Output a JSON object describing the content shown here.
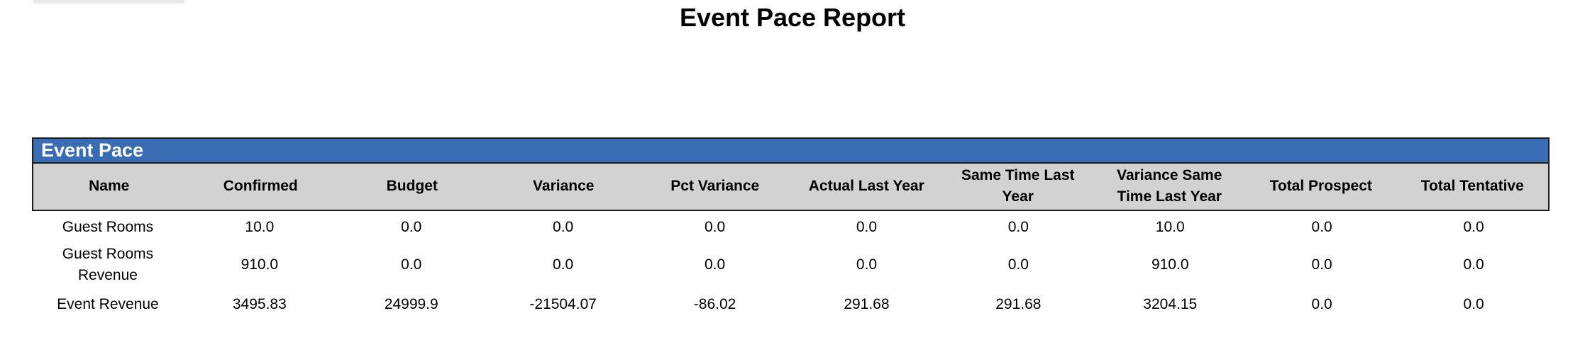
{
  "report": {
    "title": "Event Pace Report"
  },
  "section": {
    "title": "Event Pace"
  },
  "table": {
    "columns": [
      "Name",
      "Confirmed",
      "Budget",
      "Variance",
      "Pct Variance",
      "Actual Last Year",
      "Same Time Last Year",
      "Variance Same Time Last Year",
      "Total Prospect",
      "Total Tentative"
    ],
    "rows": [
      {
        "cells": [
          "Guest Rooms",
          "10.0",
          "0.0",
          "0.0",
          "0.0",
          "0.0",
          "0.0",
          "10.0",
          "0.0",
          "0.0"
        ]
      },
      {
        "cells": [
          "Guest Rooms Revenue",
          "910.0",
          "0.0",
          "0.0",
          "0.0",
          "0.0",
          "0.0",
          "910.0",
          "0.0",
          "0.0"
        ]
      },
      {
        "cells": [
          "Event Revenue",
          "3495.83",
          "24999.9",
          "-21504.07",
          "-86.02",
          "291.68",
          "291.68",
          "3204.15",
          "0.0",
          "0.0"
        ]
      }
    ]
  },
  "colors": {
    "band_background": "#3A6CB4",
    "band_text": "#FFFFFF",
    "header_background": "#D2D2D2",
    "border": "#1C1C1C"
  }
}
